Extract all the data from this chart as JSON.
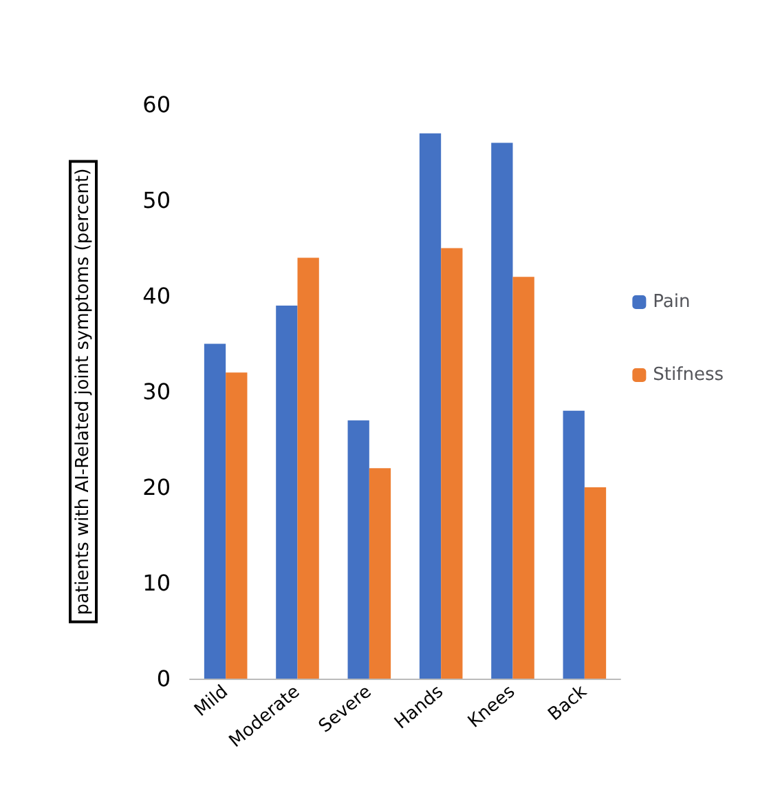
{
  "chart_data": {
    "type": "bar",
    "ylabel": "patients with AI-Related joint symptoms (percent)",
    "categories": [
      "Mild",
      "Moderate",
      "Severe",
      "Hands",
      "Knees",
      "Back"
    ],
    "series": [
      {
        "name": "Pain",
        "color": "#4472c4",
        "values": [
          35,
          39,
          27,
          57,
          56,
          28
        ]
      },
      {
        "name": "Stifness",
        "color": "#ed7d31",
        "values": [
          32,
          44,
          22,
          45,
          42,
          20
        ]
      }
    ],
    "ylim": [
      0,
      60
    ],
    "yticks": [
      0,
      10,
      20,
      30,
      40,
      50,
      60
    ],
    "grid": false,
    "legend": "right"
  }
}
